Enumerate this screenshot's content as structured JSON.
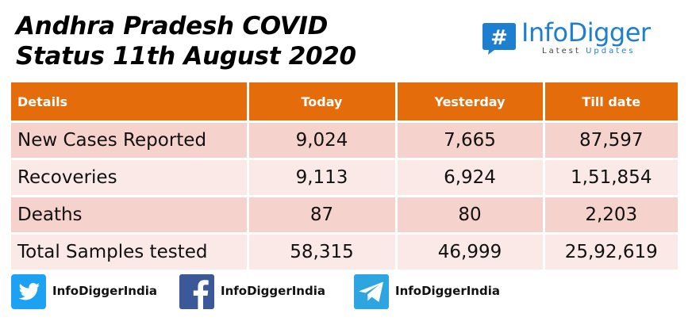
{
  "title": {
    "line1": "Andhra Pradesh COVID",
    "line2": "Status 11th August 2020"
  },
  "brand": {
    "symbol": "#",
    "name": "InfoDigger",
    "tagline_part1": "Latest",
    "tagline_part2": "Updates",
    "color": "#1f7fcf"
  },
  "table": {
    "header_color": "#e46c0a",
    "row_color_odd": "#f5d2cc",
    "row_color_even": "#fae9e6",
    "columns": [
      "Details",
      "Today",
      "Yesterday",
      "Till date"
    ],
    "rows": [
      [
        "New Cases Reported",
        "9,024",
        "7,665",
        "87,597"
      ],
      [
        "Recoveries",
        "9,113",
        "6,924",
        "1,51,854"
      ],
      [
        "Deaths",
        "87",
        "80",
        "2,203"
      ],
      [
        "Total Samples tested",
        "58,315",
        "46,999",
        "25,92,619"
      ]
    ]
  },
  "socials": [
    {
      "icon": "twitter-icon",
      "handle": "InfoDiggerIndia",
      "color": "#1da1f2"
    },
    {
      "icon": "facebook-icon",
      "handle": "InfoDiggerIndia",
      "color": "#3b5998"
    },
    {
      "icon": "telegram-icon",
      "handle": "InfoDiggerIndia",
      "color": "#2ca5e0"
    }
  ]
}
